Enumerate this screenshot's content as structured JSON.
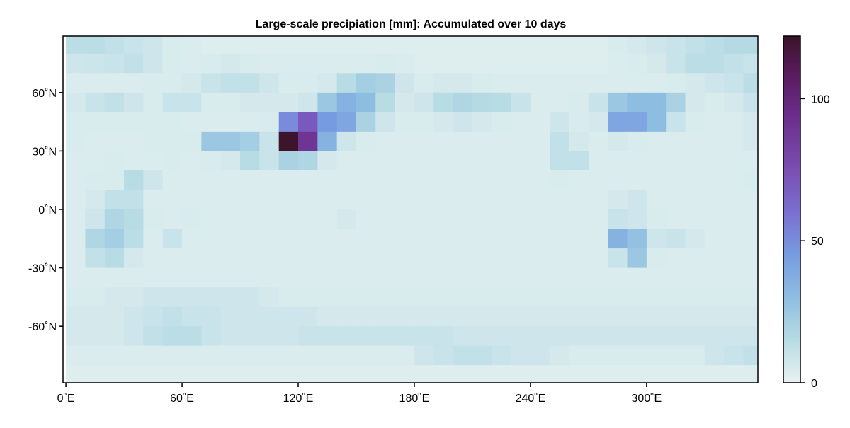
{
  "chart_data": {
    "type": "heatmap",
    "title": "Large-scale precipiation [mm]: Accumulated over 10 days",
    "xlabel": "",
    "ylabel": "",
    "xlim": [
      -1.5,
      357.5
    ],
    "ylim": [
      -89,
      89
    ],
    "x_ticks": [
      0,
      60,
      120,
      180,
      240,
      300
    ],
    "x_tick_labels": [
      "0˚E",
      "60˚E",
      "120˚E",
      "180˚E",
      "240˚E",
      "300˚E"
    ],
    "y_ticks": [
      60,
      30,
      0,
      -30,
      -60
    ],
    "y_tick_labels": [
      "60˚N",
      "30˚N",
      "0˚N",
      "-30˚N",
      "-60˚N"
    ],
    "lon_starts": [
      0,
      10,
      20,
      30,
      40,
      50,
      60,
      70,
      80,
      90,
      100,
      110,
      120,
      130,
      140,
      150,
      160,
      170,
      180,
      190,
      200,
      210,
      220,
      230,
      240,
      250,
      260,
      270,
      280,
      290,
      300,
      310,
      320,
      330,
      340,
      350
    ],
    "lat_tops": [
      90,
      80,
      70,
      60,
      50,
      40,
      30,
      20,
      10,
      0,
      -10,
      -20,
      -30,
      -40,
      -50,
      -60,
      -70,
      -80
    ],
    "cell_size_deg": 10,
    "values": [
      [
        14,
        14,
        12,
        10,
        8,
        5,
        4,
        3,
        3,
        3,
        3,
        3,
        3,
        3,
        3,
        3,
        3,
        3,
        3,
        3,
        3,
        3,
        3,
        3,
        3,
        3,
        3,
        3,
        5,
        6,
        8,
        10,
        12,
        14,
        16,
        16
      ],
      [
        8,
        9,
        10,
        12,
        8,
        5,
        4,
        5,
        6,
        5,
        4,
        4,
        4,
        4,
        4,
        4,
        5,
        4,
        3,
        3,
        3,
        3,
        3,
        3,
        3,
        3,
        3,
        3,
        4,
        5,
        6,
        10,
        14,
        14,
        12,
        10
      ],
      [
        4,
        4,
        4,
        4,
        5,
        5,
        6,
        10,
        12,
        12,
        8,
        5,
        5,
        6,
        15,
        22,
        20,
        8,
        5,
        6,
        6,
        5,
        4,
        4,
        4,
        4,
        4,
        4,
        4,
        4,
        4,
        5,
        6,
        8,
        10,
        14
      ],
      [
        6,
        10,
        12,
        8,
        5,
        10,
        10,
        5,
        5,
        6,
        6,
        6,
        8,
        25,
        35,
        30,
        15,
        6,
        8,
        15,
        18,
        16,
        15,
        10,
        4,
        4,
        5,
        10,
        25,
        30,
        30,
        20,
        6,
        5,
        6,
        10
      ],
      [
        5,
        5,
        5,
        5,
        5,
        5,
        4,
        4,
        4,
        4,
        5,
        50,
        70,
        45,
        40,
        20,
        8,
        5,
        5,
        6,
        8,
        6,
        5,
        4,
        4,
        8,
        5,
        6,
        40,
        40,
        30,
        10,
        5,
        4,
        4,
        6
      ],
      [
        5,
        4,
        4,
        4,
        5,
        5,
        5,
        25,
        25,
        22,
        10,
        121,
        90,
        35,
        8,
        5,
        4,
        4,
        4,
        4,
        4,
        4,
        4,
        4,
        4,
        12,
        6,
        4,
        6,
        5,
        4,
        4,
        4,
        4,
        4,
        6
      ],
      [
        4,
        4,
        5,
        4,
        4,
        5,
        4,
        5,
        6,
        15,
        10,
        20,
        18,
        6,
        4,
        4,
        4,
        4,
        4,
        4,
        4,
        4,
        4,
        4,
        4,
        12,
        12,
        4,
        4,
        4,
        4,
        4,
        4,
        4,
        4,
        4
      ],
      [
        4,
        5,
        5,
        15,
        8,
        4,
        4,
        4,
        4,
        4,
        4,
        4,
        4,
        4,
        4,
        4,
        4,
        4,
        4,
        4,
        4,
        4,
        4,
        4,
        4,
        5,
        4,
        4,
        4,
        4,
        4,
        4,
        4,
        4,
        4,
        5
      ],
      [
        4,
        6,
        12,
        12,
        4,
        4,
        4,
        4,
        4,
        4,
        4,
        4,
        4,
        4,
        4,
        4,
        4,
        4,
        4,
        4,
        4,
        4,
        4,
        4,
        4,
        4,
        4,
        4,
        6,
        8,
        4,
        4,
        4,
        4,
        4,
        4
      ],
      [
        4,
        8,
        18,
        15,
        5,
        4,
        5,
        4,
        4,
        4,
        4,
        4,
        4,
        4,
        6,
        4,
        4,
        4,
        4,
        4,
        4,
        4,
        4,
        4,
        4,
        4,
        4,
        4,
        10,
        8,
        5,
        4,
        4,
        4,
        4,
        4
      ],
      [
        4,
        18,
        22,
        14,
        4,
        10,
        4,
        4,
        4,
        4,
        4,
        4,
        4,
        4,
        4,
        4,
        4,
        4,
        4,
        4,
        4,
        4,
        4,
        4,
        4,
        4,
        4,
        4,
        35,
        28,
        8,
        10,
        6,
        4,
        4,
        4
      ],
      [
        4,
        12,
        15,
        6,
        4,
        4,
        4,
        4,
        4,
        4,
        4,
        4,
        4,
        4,
        4,
        4,
        4,
        4,
        4,
        4,
        4,
        4,
        4,
        4,
        4,
        4,
        4,
        4,
        10,
        25,
        5,
        4,
        4,
        4,
        4,
        4
      ],
      [
        4,
        4,
        4,
        4,
        4,
        4,
        4,
        4,
        4,
        4,
        4,
        4,
        4,
        4,
        4,
        4,
        4,
        4,
        4,
        4,
        4,
        4,
        4,
        4,
        4,
        4,
        4,
        4,
        4,
        4,
        4,
        4,
        4,
        4,
        4,
        4
      ],
      [
        5,
        5,
        6,
        6,
        8,
        8,
        8,
        8,
        8,
        8,
        6,
        5,
        5,
        5,
        5,
        5,
        5,
        5,
        5,
        5,
        5,
        5,
        5,
        5,
        5,
        5,
        5,
        5,
        5,
        5,
        5,
        5,
        5,
        5,
        5,
        5
      ],
      [
        6,
        6,
        6,
        8,
        10,
        12,
        10,
        10,
        8,
        8,
        8,
        8,
        8,
        6,
        6,
        6,
        6,
        6,
        6,
        6,
        6,
        6,
        6,
        6,
        6,
        6,
        6,
        6,
        6,
        6,
        6,
        6,
        6,
        6,
        6,
        6
      ],
      [
        6,
        6,
        6,
        8,
        12,
        14,
        14,
        10,
        8,
        8,
        8,
        8,
        10,
        10,
        10,
        10,
        10,
        10,
        10,
        10,
        8,
        8,
        8,
        8,
        8,
        8,
        8,
        8,
        8,
        8,
        8,
        8,
        8,
        8,
        8,
        8
      ],
      [
        4,
        4,
        4,
        4,
        4,
        4,
        4,
        4,
        4,
        4,
        4,
        4,
        4,
        4,
        4,
        4,
        4,
        4,
        8,
        10,
        12,
        12,
        10,
        8,
        8,
        6,
        5,
        5,
        5,
        5,
        5,
        5,
        5,
        8,
        10,
        12
      ],
      [
        3,
        3,
        3,
        3,
        3,
        3,
        3,
        3,
        3,
        3,
        3,
        3,
        3,
        3,
        3,
        3,
        3,
        3,
        3,
        3,
        3,
        3,
        3,
        3,
        3,
        3,
        3,
        3,
        3,
        3,
        3,
        3,
        3,
        3,
        3,
        3
      ]
    ],
    "colorbar": {
      "range": [
        0,
        122
      ],
      "ticks": [
        0,
        50,
        100
      ],
      "tick_labels": [
        "0",
        "50",
        "100"
      ],
      "colormap": [
        {
          "v": 0,
          "c": "#e8f2f2"
        },
        {
          "v": 15,
          "c": "#b8dce4"
        },
        {
          "v": 30,
          "c": "#8ebde2"
        },
        {
          "v": 45,
          "c": "#779be0"
        },
        {
          "v": 60,
          "c": "#7a6fd0"
        },
        {
          "v": 75,
          "c": "#7a4eb2"
        },
        {
          "v": 95,
          "c": "#6a2c88"
        },
        {
          "v": 110,
          "c": "#561a5a"
        },
        {
          "v": 122,
          "c": "#3a1428"
        }
      ]
    },
    "grid": false,
    "legend": "colorbar-right"
  }
}
